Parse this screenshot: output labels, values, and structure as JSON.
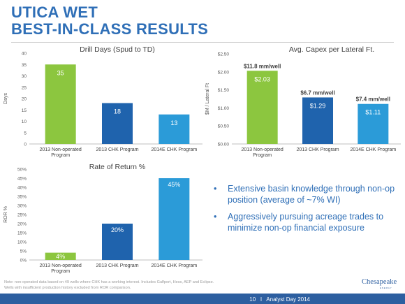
{
  "slide": {
    "title_line1": "UTICA WET",
    "title_line2": "BEST-IN-CLASS RESULTS",
    "note": "Note: non-operated data based on 49 wells where CHK has a working interest.  Includes Gulfport, Hess, AEP and Eclipse.\nWells with insufficient production history excluded from ROR comparison.",
    "footer": "10   I   Analyst Day 2014",
    "logo_word": "Chesapeake",
    "logo_sub": "ENERGY"
  },
  "bullets": [
    {
      "dot": "•",
      "text": "Extensive basin knowledge through non-op position (average of ~7% WI)"
    },
    {
      "dot": "•",
      "text": "Aggressively pursuing acreage trades to minimize non-op financial exposure"
    }
  ],
  "colors": {
    "title": "#2f6fb7",
    "bar_green": "#8cc63f",
    "bar_dark_blue": "#1f63ad",
    "bar_light_blue": "#2b9bd8",
    "footer": "#2d5fa0"
  },
  "chart_data": [
    {
      "id": "drill_days",
      "type": "bar",
      "title": "Drill Days (Spud to TD)",
      "ylabel": "Days",
      "xlabel": "",
      "categories": [
        "2013 Non-operated\nProgram",
        "2013 CHK Program",
        "2014E CHK Program"
      ],
      "values": [
        35,
        18,
        13
      ],
      "value_labels": [
        "35",
        "18",
        "13"
      ],
      "ylim": [
        0,
        40
      ],
      "yticks": [
        0,
        5,
        10,
        15,
        20,
        25,
        30,
        35,
        40
      ],
      "ytick_labels": [
        "0",
        "5",
        "10",
        "15",
        "20",
        "25",
        "30",
        "35",
        "40"
      ],
      "bar_colors": [
        "#8cc63f",
        "#1f63ad",
        "#2b9bd8"
      ],
      "annotations": [],
      "grid": false
    },
    {
      "id": "capex",
      "type": "bar",
      "title": "Avg. Capex per Lateral Ft.",
      "ylabel": "$M / Lateral Ft",
      "xlabel": "",
      "categories": [
        "2013 Non-operated\nProgram",
        "2013 CHK Program",
        "2014E CHK Program"
      ],
      "values": [
        2.03,
        1.29,
        1.11
      ],
      "value_labels": [
        "$2.03",
        "$1.29",
        "$1.11"
      ],
      "ylim": [
        0,
        2.5
      ],
      "yticks": [
        0,
        0.5,
        1,
        1.5,
        2,
        2.5
      ],
      "ytick_labels": [
        "$0.00",
        "$0.50",
        "$1.00",
        "$1.50",
        "$2.00",
        "$2.50"
      ],
      "bar_colors": [
        "#8cc63f",
        "#1f63ad",
        "#2b9bd8"
      ],
      "annotations": [
        "$11.8 mm/well",
        "$6.7 mm/well",
        "$7.4 mm/well"
      ],
      "grid": false
    },
    {
      "id": "ror",
      "type": "bar",
      "title": "Rate of Return %",
      "ylabel": "ROR %",
      "xlabel": "",
      "categories": [
        "2013 Non-operated\nProgram",
        "2013 CHK Program",
        "2014E CHK Program"
      ],
      "values": [
        4,
        20,
        45
      ],
      "value_labels": [
        "4%",
        "20%",
        "45%"
      ],
      "ylim": [
        0,
        50
      ],
      "yticks": [
        0,
        5,
        10,
        15,
        20,
        25,
        30,
        35,
        40,
        45,
        50
      ],
      "ytick_labels": [
        "0%",
        "5%",
        "10%",
        "15%",
        "20%",
        "25%",
        "30%",
        "35%",
        "40%",
        "45%",
        "50%"
      ],
      "bar_colors": [
        "#8cc63f",
        "#1f63ad",
        "#2b9bd8"
      ],
      "annotations": [],
      "grid": false
    }
  ]
}
